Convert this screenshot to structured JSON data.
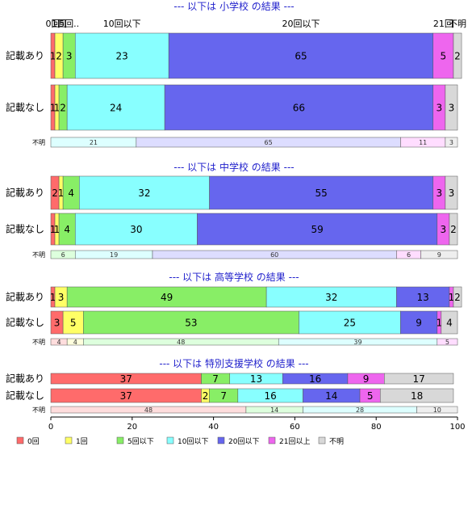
{
  "chart_data": {
    "type": "bar",
    "orientation": "horizontal-stacked-percent",
    "categories": [
      "0回",
      "1回",
      "5回以下",
      "10回以下",
      "20回以下",
      "21回以上",
      "不明"
    ],
    "category_header_labels": [
      "0回",
      "1回",
      "5回..",
      "10回以下",
      "20回以下",
      "21回",
      "不明"
    ],
    "colors": [
      "#ff6b6b",
      "#ffff66",
      "#88ee66",
      "#88ffff",
      "#6666ee",
      "#ee66ee",
      "#d8d8d8"
    ],
    "light_colors": [
      "#ffdddd",
      "#ffffdd",
      "#ddffdd",
      "#ddffff",
      "#ddddff",
      "#ffddff",
      "#eeeeee"
    ],
    "xlim": [
      0,
      100
    ],
    "xticks": [
      "0",
      "20",
      "40",
      "60",
      "80",
      "100"
    ],
    "groups": [
      {
        "title": "--- 以下は 小学校 の結果 ---",
        "rows": [
          {
            "label": "記載あり",
            "values": [
              1,
              2,
              3,
              23,
              65,
              5,
              2
            ]
          },
          {
            "label": "記載なし",
            "values": [
              1,
              1,
              2,
              24,
              66,
              3,
              3
            ]
          }
        ],
        "unknown": {
          "label": "不明",
          "values": [
            0,
            0,
            0,
            21,
            65,
            11,
            3
          ]
        }
      },
      {
        "title": "--- 以下は 中学校 の結果 ---",
        "rows": [
          {
            "label": "記載あり",
            "values": [
              2,
              1,
              4,
              32,
              55,
              3,
              3
            ]
          },
          {
            "label": "記載なし",
            "values": [
              1,
              1,
              4,
              30,
              59,
              3,
              2
            ]
          }
        ],
        "unknown": {
          "label": "不明",
          "values": [
            0,
            0,
            6,
            19,
            60,
            6,
            9
          ]
        }
      },
      {
        "title": "--- 以下は 高等学校 の結果 ---",
        "rows": [
          {
            "label": "記載あり",
            "values": [
              1,
              3,
              49,
              32,
              13,
              1,
              2
            ]
          },
          {
            "label": "記載なし",
            "values": [
              3,
              5,
              53,
              25,
              9,
              1,
              4
            ]
          }
        ],
        "unknown": {
          "label": "不明",
          "values": [
            4,
            4,
            48,
            39,
            0,
            5,
            0
          ]
        }
      },
      {
        "title": "--- 以下は 特別支援学校 の結果 ---",
        "rows": [
          {
            "label": "記載あり",
            "values": [
              37,
              0,
              7,
              13,
              16,
              9,
              17
            ]
          },
          {
            "label": "記載なし",
            "values": [
              37,
              2,
              7,
              16,
              14,
              5,
              18
            ]
          }
        ],
        "unknown": {
          "label": "不明",
          "values": [
            48,
            0,
            14,
            28,
            0,
            0,
            10
          ]
        }
      }
    ],
    "legend": [
      "0回",
      "1回",
      "5回以下",
      "10回以下",
      "20回以下",
      "21回以上",
      "不明"
    ],
    "legend_position": "bottom"
  }
}
